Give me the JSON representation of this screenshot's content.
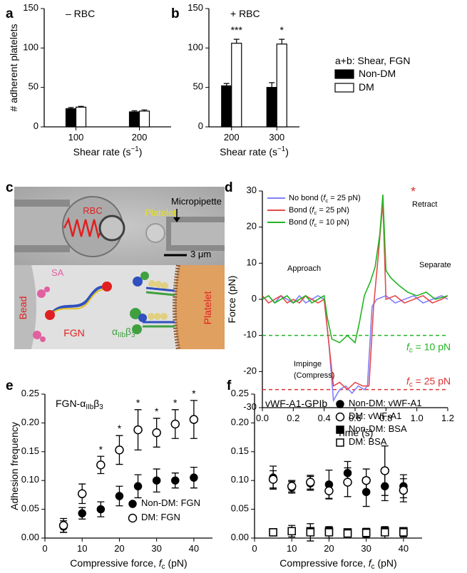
{
  "chart_data": [
    {
      "panel": "a",
      "type": "bar",
      "annotation": "– RBC",
      "ylabel": "# adherent platelets",
      "xlabel": "Shear rate (s−1)",
      "categories": [
        "100",
        "200"
      ],
      "ylim": [
        0,
        150
      ],
      "yticks": [
        0,
        50,
        100,
        150
      ],
      "series": [
        {
          "color": "#000000",
          "values": [
            23,
            19
          ],
          "errors": [
            1.5,
            1.5
          ]
        },
        {
          "color": "#ffffff",
          "values": [
            25,
            20
          ],
          "errors": [
            1,
            1.5
          ]
        }
      ]
    },
    {
      "panel": "b",
      "type": "bar",
      "annotation": "+ RBC",
      "xlabel": "Shear rate (s−1)",
      "categories": [
        "200",
        "300"
      ],
      "ylim": [
        0,
        150
      ],
      "yticks": [
        0,
        50,
        100,
        150
      ],
      "significance": [
        "***",
        "*"
      ],
      "legend_title": "a+b: Shear, FGN",
      "series": [
        {
          "name": "Non-DM",
          "color": "#000000",
          "values": [
            52,
            50
          ],
          "errors": [
            3,
            6
          ]
        },
        {
          "name": "DM",
          "color": "#ffffff",
          "values": [
            106,
            105
          ],
          "errors": [
            5,
            6
          ]
        }
      ]
    },
    {
      "panel": "d",
      "type": "line",
      "ylabel": "Force (pN)",
      "xlabel": "Time (s)",
      "xlim": [
        0,
        1.2
      ],
      "xticks": [
        {
          "value": 0,
          "label": "0.0"
        },
        0.2,
        0.4,
        0.6,
        0.8,
        {
          "value": 1,
          "label": "1.0"
        },
        1.2
      ],
      "ylim": [
        -30,
        30
      ],
      "yticks": [
        -30,
        -20,
        -10,
        0,
        10,
        20,
        30
      ],
      "legend": "upper left",
      "annotations": [
        "Approach",
        "Retract",
        "Separate",
        "Impinge",
        "(Compress)",
        "*"
      ],
      "reference_lines": [
        {
          "value": -10,
          "color": "#22b422",
          "label": "fc = 10 pN"
        },
        {
          "value": -25,
          "color": "#e03030",
          "label": "fc = 25 pN"
        }
      ],
      "series": [
        {
          "name": "No bond (fc = 25 pN)",
          "color": "#8080ff",
          "x": [
            0,
            0.04,
            0.08,
            0.12,
            0.16,
            0.2,
            0.24,
            0.28,
            0.32,
            0.36,
            0.4,
            0.43,
            0.46,
            0.5,
            0.54,
            0.58,
            0.62,
            0.66,
            0.68,
            0.71,
            0.74,
            0.8,
            0.86,
            0.92,
            0.98,
            1.04,
            1.1,
            1.16,
            1.2
          ],
          "values": [
            0,
            1,
            -1,
            1,
            0,
            -1,
            1,
            -1,
            0,
            1,
            0,
            -12,
            -28,
            -25,
            -24,
            -26,
            -24,
            -25,
            -24,
            -2,
            0,
            1,
            -1,
            0,
            1,
            -1,
            0,
            1,
            0
          ]
        },
        {
          "name": "Bond (fc = 25 pN)",
          "color": "#e84a4a",
          "x": [
            0,
            0.04,
            0.08,
            0.12,
            0.16,
            0.2,
            0.24,
            0.28,
            0.32,
            0.36,
            0.4,
            0.42,
            0.46,
            0.5,
            0.55,
            0.6,
            0.65,
            0.69,
            0.72,
            0.75,
            0.78,
            0.8,
            0.86,
            0.92,
            0.98,
            1.04,
            1.1,
            1.16,
            1.2
          ],
          "values": [
            1,
            -1,
            0,
            1,
            -1,
            0,
            -1,
            1,
            0,
            -1,
            0,
            -8,
            -24,
            -23,
            -25,
            -23,
            -24,
            -24,
            -2,
            12,
            27,
            0,
            1,
            -1,
            0,
            1,
            -1,
            0,
            1
          ]
        },
        {
          "name": "Bond (fc = 10 pN)",
          "color": "#22b422",
          "x": [
            0,
            0.04,
            0.08,
            0.12,
            0.16,
            0.2,
            0.24,
            0.28,
            0.32,
            0.36,
            0.4,
            0.42,
            0.45,
            0.5,
            0.55,
            0.6,
            0.63,
            0.66,
            0.7,
            0.73,
            0.76,
            0.78,
            0.8,
            0.83,
            0.88,
            0.94,
            1.0,
            1.06,
            1.12,
            1.2
          ],
          "values": [
            0,
            1,
            -1,
            0,
            1,
            -1,
            0,
            1,
            -1,
            0,
            1,
            -5,
            -11,
            -12,
            -10,
            -12,
            -6,
            1,
            5,
            9,
            18,
            29,
            8,
            6,
            4,
            2,
            1,
            2,
            0,
            1
          ]
        }
      ]
    },
    {
      "panel": "e",
      "type": "scatter",
      "title": "FGN-αIIbβ3",
      "ylabel": "Adhesion frequency",
      "xlabel": "Compressive force, fc (pN)",
      "xlim": [
        0,
        45
      ],
      "xticks": [
        0,
        10,
        20,
        30,
        40
      ],
      "ylim": [
        0,
        0.25
      ],
      "yticks": [
        {
          "value": 0,
          "label": "0.00"
        },
        {
          "value": 0.05,
          "label": "0.05"
        },
        {
          "value": 0.1,
          "label": "0.10"
        },
        {
          "value": 0.15,
          "label": "0.15"
        },
        {
          "value": 0.2,
          "label": "0.20"
        },
        {
          "value": 0.25,
          "label": "0.25"
        }
      ],
      "legend": "lower right",
      "x": [
        5,
        10,
        15,
        20,
        25,
        30,
        35,
        40
      ],
      "significance": [
        null,
        null,
        "*",
        "*",
        "*",
        "*",
        "*",
        "*"
      ],
      "series": [
        {
          "name": "Non-DM: FGN",
          "marker": "circle",
          "color": "#000000",
          "fill": "#000000",
          "values": [
            0.02,
            0.043,
            0.05,
            0.073,
            0.09,
            0.1,
            0.1,
            0.105
          ],
          "errors": [
            0.01,
            0.01,
            0.013,
            0.017,
            0.02,
            0.02,
            0.013,
            0.018
          ]
        },
        {
          "name": "DM: FGN",
          "marker": "circle",
          "color": "#000000",
          "fill": "#ffffff",
          "values": [
            0.022,
            0.077,
            0.127,
            0.153,
            0.188,
            0.183,
            0.198,
            0.206
          ],
          "errors": [
            0.012,
            0.017,
            0.015,
            0.025,
            0.035,
            0.025,
            0.025,
            0.033
          ]
        }
      ]
    },
    {
      "panel": "f",
      "type": "scatter",
      "title": "vWF-A1-GPIb",
      "xlabel": "Compressive force, fc (pN)",
      "xlim": [
        0,
        45
      ],
      "xticks": [
        0,
        10,
        20,
        30,
        40
      ],
      "ylim": [
        0,
        0.25
      ],
      "yticks": [
        {
          "value": 0,
          "label": "0.00"
        },
        {
          "value": 0.05,
          "label": "0.05"
        },
        {
          "value": 0.1,
          "label": "0.10"
        },
        {
          "value": 0.15,
          "label": "0.15"
        },
        {
          "value": 0.2,
          "label": "0.20"
        },
        {
          "value": 0.25,
          "label": "0.25"
        }
      ],
      "legend": "upper right",
      "x": [
        5,
        10,
        15,
        20,
        25,
        30,
        35,
        40
      ],
      "series": [
        {
          "name": "Non-DM: vWF-A1",
          "marker": "circle",
          "color": "#000000",
          "fill": "#000000",
          "values": [
            0.105,
            0.088,
            0.095,
            0.093,
            0.113,
            0.08,
            0.09,
            0.09
          ],
          "errors": [
            0.02,
            0.01,
            0.012,
            0.025,
            0.02,
            0.025,
            0.025,
            0.02
          ]
        },
        {
          "name": "DM: vWF-A1",
          "marker": "circle",
          "color": "#000000",
          "fill": "#ffffff",
          "values": [
            0.102,
            0.09,
            0.097,
            0.082,
            0.097,
            0.1,
            0.117,
            0.083
          ],
          "errors": [
            0.015,
            0.01,
            0.012,
            0.013,
            0.025,
            0.02,
            0.043,
            0.02
          ]
        },
        {
          "name": "Non-DM: BSA",
          "marker": "square",
          "color": "#000000",
          "fill": "#000000",
          "values": [
            0.01,
            0.012,
            0.012,
            0.012,
            0.01,
            0.01,
            0.012,
            0.012
          ],
          "errors": [
            0.005,
            0.005,
            0.005,
            0.005,
            0.005,
            0.005,
            0.005,
            0.005
          ]
        },
        {
          "name": "DM: BSA",
          "marker": "square",
          "color": "#000000",
          "fill": "#ffffff",
          "values": [
            0.01,
            0.012,
            0.01,
            0.01,
            0.008,
            0.009,
            0.01,
            0.01
          ],
          "errors": [
            0.005,
            0.01,
            0.015,
            0.01,
            0.005,
            0.008,
            0.01,
            0.008
          ]
        }
      ]
    }
  ],
  "diagram_c": {
    "panel": "c",
    "labels": {
      "rbc": "RBC",
      "micropipette": "Micropipette",
      "platelet_photo": "Platelet",
      "scale": "3 μm",
      "sa": "SA",
      "bead": "Bead",
      "fgn": "FGN",
      "integrin": "αIIbβ3",
      "platelet": "Platelet"
    }
  }
}
